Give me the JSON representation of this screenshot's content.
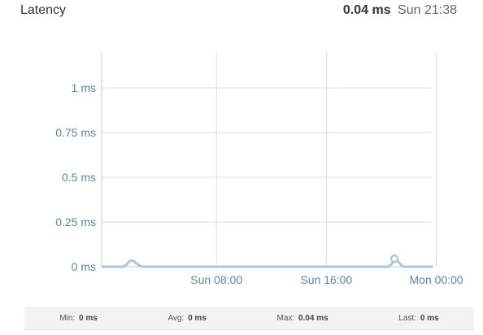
{
  "widget": {
    "title": "Latency",
    "current_value": "0.04 ms",
    "current_time": "Sun 21:38"
  },
  "stats": [
    {
      "label": "Min:",
      "value": "0 ms"
    },
    {
      "label": "Avg:",
      "value": "0 ms"
    },
    {
      "label": "Max:",
      "value": "0.04 ms"
    },
    {
      "label": "Last:",
      "value": "0 ms"
    }
  ],
  "colors": {
    "line": "#a8c8e4",
    "tick_text": "#5b87ad",
    "grid": "#d8dee4",
    "axis": "#b8cde0"
  },
  "chart_data": {
    "type": "line",
    "title": "Latency",
    "xlabel": "",
    "ylabel": "",
    "x_unit": "hours since Sun 00:00",
    "xlim": [
      -0.3,
      48
    ],
    "ylim": [
      0,
      1.2
    ],
    "y_ticks": [
      0,
      0.25,
      0.5,
      0.75,
      1
    ],
    "y_tick_labels": [
      "0 ms",
      "0.25 ms",
      "0.5 ms",
      "0.75 ms",
      "1 ms"
    ],
    "x_ticks": [
      8,
      16,
      24
    ],
    "x_tick_labels": [
      "Sun 08:00",
      "Sun 16:00",
      "Mon 00:00"
    ],
    "x_gridlines": [
      0,
      8,
      16,
      24
    ],
    "grid": true,
    "legend": "none",
    "series": [
      {
        "name": "Latency",
        "x": [
          -0.3,
          1.2,
          1.45,
          1.65,
          1.8,
          2.0,
          2.3,
          2.6,
          20.5,
          20.75,
          20.95,
          21.1,
          21.3,
          21.6,
          21.9,
          24.2
        ],
        "y": [
          0,
          0,
          0.01,
          0.03,
          0.035,
          0.03,
          0.01,
          0,
          0,
          0.015,
          0.04,
          0.04,
          0.02,
          0,
          0,
          0
        ]
      }
    ]
  }
}
